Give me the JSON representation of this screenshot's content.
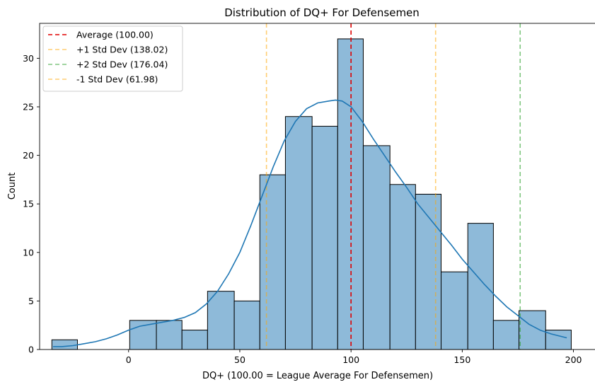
{
  "chart_data": {
    "type": "bar",
    "title": "Distribution of DQ+ For Defensemen",
    "xlabel": "DQ+ (100.00 = League Average For Defensemen)",
    "ylabel": "Count",
    "xlim": [
      -40,
      210
    ],
    "ylim": [
      0,
      33.6
    ],
    "xticks": [
      0,
      50,
      100,
      150,
      200
    ],
    "yticks": [
      0,
      5,
      10,
      15,
      20,
      25,
      30
    ],
    "grid": false,
    "legend_position": "top-left",
    "bar_color": "#8ebad9",
    "bar_edge_color": "#000000",
    "kde_color": "#1f77b4",
    "bins": [
      {
        "x0": -34.5,
        "x1": -23.0,
        "count": 1
      },
      {
        "x0": -23.0,
        "x1": -11.5,
        "count": 0
      },
      {
        "x0": -11.5,
        "x1": 0.5,
        "count": 0
      },
      {
        "x0": 0.5,
        "x1": 12.5,
        "count": 3
      },
      {
        "x0": 12.5,
        "x1": 24.0,
        "count": 3
      },
      {
        "x0": 24.0,
        "x1": 35.5,
        "count": 2
      },
      {
        "x0": 35.5,
        "x1": 47.5,
        "count": 6
      },
      {
        "x0": 47.5,
        "x1": 59.0,
        "count": 5
      },
      {
        "x0": 59.0,
        "x1": 70.5,
        "count": 18
      },
      {
        "x0": 70.5,
        "x1": 82.5,
        "count": 24
      },
      {
        "x0": 82.5,
        "x1": 94.0,
        "count": 23
      },
      {
        "x0": 94.0,
        "x1": 105.5,
        "count": 32
      },
      {
        "x0": 105.5,
        "x1": 117.5,
        "count": 21
      },
      {
        "x0": 117.5,
        "x1": 129.0,
        "count": 17
      },
      {
        "x0": 129.0,
        "x1": 140.5,
        "count": 16
      },
      {
        "x0": 140.5,
        "x1": 152.5,
        "count": 8
      },
      {
        "x0": 152.5,
        "x1": 164.0,
        "count": 13
      },
      {
        "x0": 164.0,
        "x1": 175.5,
        "count": 3
      },
      {
        "x0": 175.5,
        "x1": 187.5,
        "count": 4
      },
      {
        "x0": 187.5,
        "x1": 199.0,
        "count": 2
      }
    ],
    "kde": {
      "x": [
        -34,
        -30,
        -25,
        -20,
        -15,
        -10,
        -5,
        0,
        5,
        10,
        15,
        20,
        25,
        30,
        35,
        40,
        45,
        50,
        55,
        60,
        65,
        70,
        75,
        80,
        85,
        90,
        93,
        96,
        100,
        105,
        110,
        115,
        120,
        125,
        130,
        135,
        140,
        145,
        150,
        155,
        160,
        165,
        170,
        175,
        180,
        185,
        190,
        197
      ],
      "y": [
        0.3,
        0.3,
        0.4,
        0.6,
        0.8,
        1.1,
        1.5,
        2.0,
        2.4,
        2.6,
        2.8,
        3.0,
        3.3,
        3.8,
        4.7,
        6.0,
        7.8,
        10.0,
        12.8,
        15.8,
        18.8,
        21.5,
        23.5,
        24.8,
        25.4,
        25.6,
        25.7,
        25.6,
        25.0,
        23.5,
        21.7,
        20.0,
        18.3,
        16.7,
        15.0,
        13.6,
        12.2,
        10.8,
        9.3,
        8.0,
        6.7,
        5.5,
        4.4,
        3.5,
        2.6,
        2.0,
        1.6,
        1.2
      ]
    },
    "reference_lines": [
      {
        "label": "Average (100.00)",
        "x": 100.0,
        "color": "#e00000",
        "opacity": 1.0
      },
      {
        "label": "+1 Std Dev (138.02)",
        "x": 138.02,
        "color": "#ffa500",
        "opacity": 0.55
      },
      {
        "label": "+2 Std Dev (176.04)",
        "x": 176.04,
        "color": "#2ca02c",
        "opacity": 0.6
      },
      {
        "label": "-1 Std Dev (61.98)",
        "x": 61.98,
        "color": "#ffa500",
        "opacity": 0.55
      }
    ]
  }
}
